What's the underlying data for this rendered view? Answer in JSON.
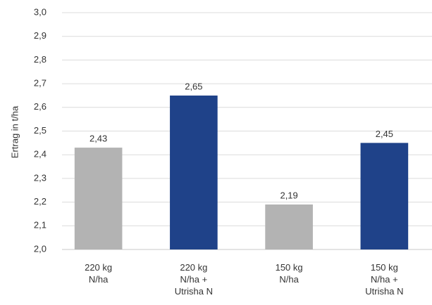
{
  "chart_data": {
    "type": "bar",
    "y_label": "Ertrag in t/ha",
    "categories": [
      "220 kg\nN/ha",
      "220 kg\nN/ha +\nUtrisha N",
      "150 kg\nN/ha",
      "150 kg\nN/ha +\nUtrisha N"
    ],
    "values": [
      2.43,
      2.65,
      2.19,
      2.45
    ],
    "value_labels": [
      "2,43",
      "2,65",
      "2,19",
      "2,45"
    ],
    "colors": [
      "#b3b3b3",
      "#1f4289",
      "#b3b3b3",
      "#1f4289"
    ],
    "ylim": [
      2.0,
      3.0
    ],
    "yticks": [
      {
        "value": 2.0,
        "label": "2,0"
      },
      {
        "value": 2.1,
        "label": "2,1"
      },
      {
        "value": 2.2,
        "label": "2,2"
      },
      {
        "value": 2.3,
        "label": "2,3"
      },
      {
        "value": 2.4,
        "label": "2,4"
      },
      {
        "value": 2.5,
        "label": "2,5"
      },
      {
        "value": 2.6,
        "label": "2,6"
      },
      {
        "value": 2.7,
        "label": "2,7"
      },
      {
        "value": 2.8,
        "label": "2,8"
      },
      {
        "value": 2.9,
        "label": "2,9"
      },
      {
        "value": 3.0,
        "label": "3,0"
      }
    ],
    "grid": true
  }
}
